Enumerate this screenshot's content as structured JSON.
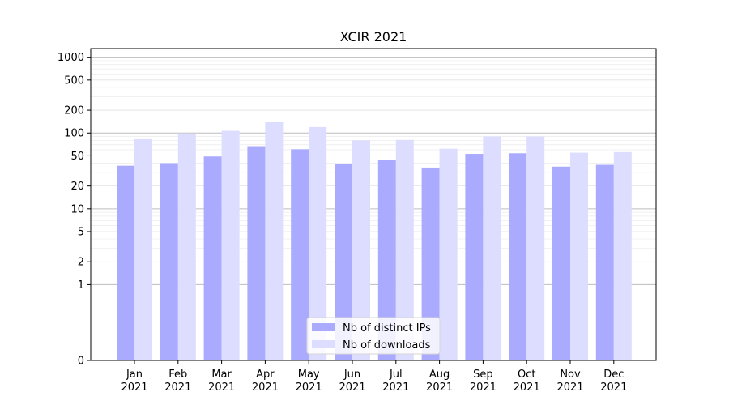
{
  "chart_data": {
    "type": "bar",
    "title": "XCIR 2021",
    "xlabel": "",
    "ylabel": "",
    "y_scale": "symlog",
    "ylim": [
      0,
      1300
    ],
    "y_ticks": [
      0,
      1,
      2,
      5,
      10,
      20,
      50,
      100,
      200,
      500,
      1000
    ],
    "y_tick_labels": [
      "0",
      "1",
      "2",
      "5",
      "10",
      "20",
      "50",
      "100",
      "200",
      "500",
      "1000"
    ],
    "grid": "horizontal",
    "legend_position": "lower-center",
    "categories": [
      {
        "month": "Jan",
        "year": "2021"
      },
      {
        "month": "Feb",
        "year": "2021"
      },
      {
        "month": "Mar",
        "year": "2021"
      },
      {
        "month": "Apr",
        "year": "2021"
      },
      {
        "month": "May",
        "year": "2021"
      },
      {
        "month": "Jun",
        "year": "2021"
      },
      {
        "month": "Jul",
        "year": "2021"
      },
      {
        "month": "Aug",
        "year": "2021"
      },
      {
        "month": "Sep",
        "year": "2021"
      },
      {
        "month": "Oct",
        "year": "2021"
      },
      {
        "month": "Nov",
        "year": "2021"
      },
      {
        "month": "Dec",
        "year": "2021"
      }
    ],
    "series": [
      {
        "name": "Nb of distinct IPs",
        "color": "#aaaaff",
        "values": [
          37,
          40,
          49,
          67,
          61,
          39,
          44,
          35,
          53,
          54,
          36,
          38
        ]
      },
      {
        "name": "Nb of downloads",
        "color": "#ddddff",
        "values": [
          85,
          99,
          107,
          142,
          120,
          80,
          81,
          62,
          90,
          90,
          55,
          56
        ]
      }
    ]
  }
}
